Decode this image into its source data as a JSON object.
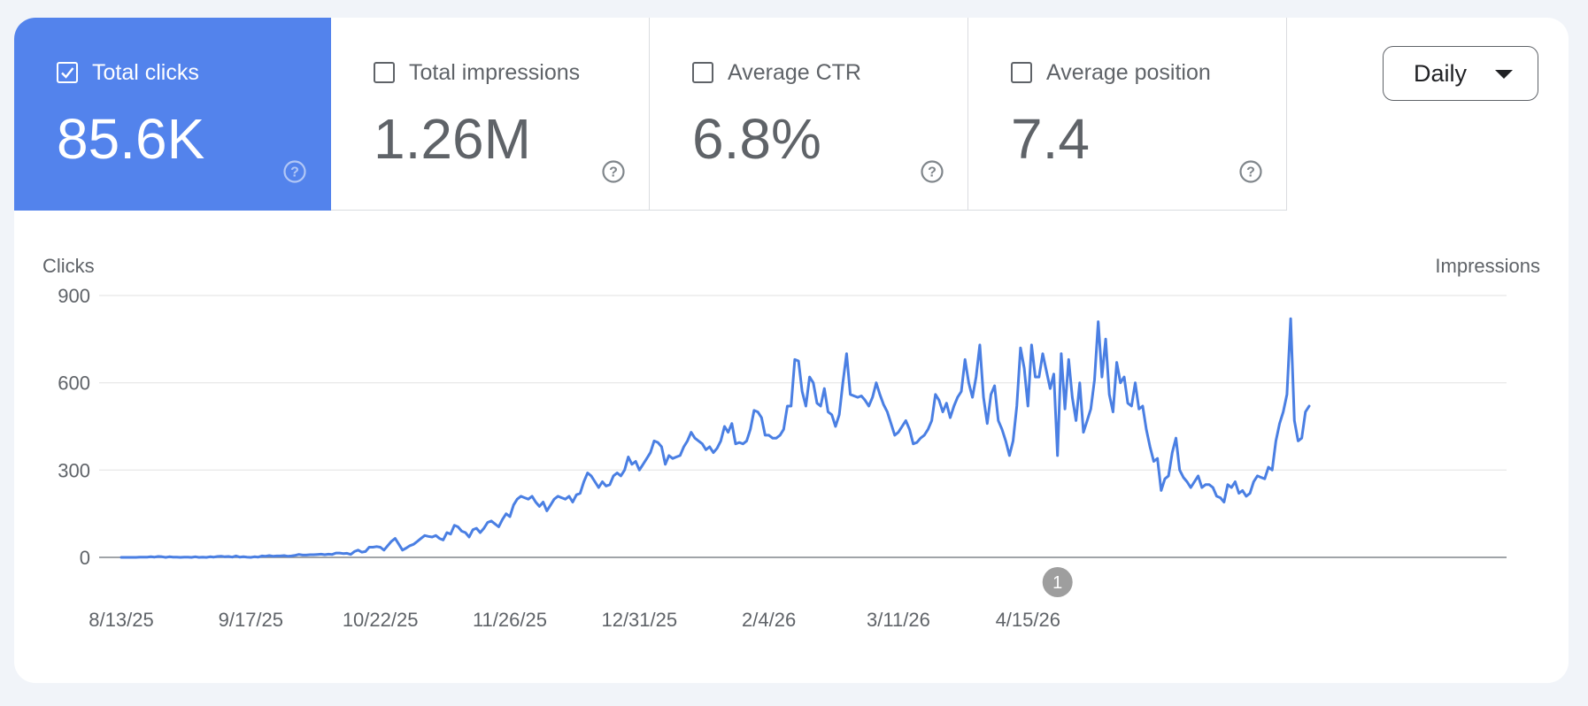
{
  "metrics": [
    {
      "label": "Total clicks",
      "value": "85.6K",
      "checked": true
    },
    {
      "label": "Total impressions",
      "value": "1.26M",
      "checked": false
    },
    {
      "label": "Average CTR",
      "value": "6.8%",
      "checked": false
    },
    {
      "label": "Average position",
      "value": "7.4",
      "checked": false
    }
  ],
  "dropdown": {
    "selected": "Daily"
  },
  "colors": {
    "accent": "#5383ec",
    "line": "#4a7fe3",
    "text": "#5f6368",
    "grid": "#e6e6e6"
  },
  "icons": {
    "help": "help-circle-icon",
    "check": "check-icon",
    "caret": "caret-down-icon"
  },
  "annotation": {
    "label": "1"
  },
  "chart_data": {
    "type": "line",
    "ylabel": "Clicks",
    "y2label": "Impressions",
    "ylim": [
      0,
      900
    ],
    "yticks": [
      0,
      300,
      600,
      900
    ],
    "xtick_labels": [
      "8/13/25",
      "9/17/25",
      "10/22/25",
      "11/26/25",
      "12/31/25",
      "2/4/26",
      "3/11/26",
      "4/15/26"
    ],
    "annotation": {
      "label": "1",
      "x_index": 253
    },
    "series": [
      {
        "values": [
          0,
          0,
          0,
          0,
          0,
          1,
          1,
          1,
          2,
          1,
          3,
          2,
          0,
          2,
          1,
          1,
          0,
          1,
          1,
          0,
          2,
          0,
          1,
          0,
          2,
          1,
          3,
          4,
          2,
          3,
          1,
          5,
          1,
          2,
          1,
          0,
          2,
          1,
          5,
          4,
          6,
          4,
          5,
          5,
          6,
          4,
          5,
          7,
          10,
          8,
          8,
          9,
          9,
          10,
          11,
          9,
          11,
          10,
          15,
          15,
          13,
          14,
          10,
          20,
          25,
          18,
          20,
          35,
          35,
          37,
          35,
          25,
          40,
          55,
          65,
          45,
          25,
          32,
          40,
          45,
          55,
          65,
          75,
          72,
          70,
          75,
          65,
          60,
          85,
          80,
          110,
          105,
          90,
          85,
          70,
          95,
          100,
          85,
          100,
          120,
          125,
          115,
          105,
          130,
          150,
          140,
          180,
          200,
          210,
          205,
          200,
          210,
          190,
          175,
          190,
          160,
          180,
          200,
          210,
          205,
          200,
          210,
          190,
          215,
          220,
          260,
          290,
          280,
          260,
          240,
          260,
          245,
          250,
          280,
          290,
          280,
          300,
          345,
          320,
          330,
          300,
          320,
          340,
          360,
          400,
          395,
          380,
          320,
          350,
          340,
          345,
          350,
          380,
          400,
          430,
          410,
          400,
          390,
          370,
          380,
          360,
          375,
          400,
          450,
          430,
          460,
          390,
          395,
          390,
          400,
          440,
          505,
          500,
          480,
          420,
          420,
          410,
          410,
          420,
          440,
          520,
          520,
          680,
          675,
          570,
          520,
          620,
          600,
          530,
          520,
          580,
          500,
          490,
          450,
          490,
          600,
          700,
          560,
          555,
          550,
          555,
          540,
          520,
          550,
          600,
          560,
          525,
          500,
          460,
          420,
          430,
          450,
          470,
          440,
          390,
          395,
          410,
          420,
          440,
          470,
          560,
          540,
          500,
          530,
          480,
          520,
          550,
          570,
          680,
          600,
          550,
          620,
          730,
          550,
          460,
          560,
          590,
          470,
          440,
          400,
          350,
          400,
          520,
          720,
          650,
          520,
          730,
          620,
          620,
          700,
          640,
          580,
          630,
          350,
          700,
          510,
          680,
          550,
          470,
          600,
          430,
          470,
          510,
          610,
          810,
          620,
          750,
          560,
          500,
          670,
          600,
          620,
          530,
          520,
          600,
          510,
          520,
          440,
          380,
          330,
          340,
          230,
          270,
          280,
          360,
          410,
          300,
          275,
          260,
          240,
          260,
          280,
          240,
          250,
          250,
          240,
          210,
          205,
          190,
          250,
          240,
          260,
          220,
          230,
          210,
          220,
          260,
          280,
          275,
          270,
          310,
          300,
          400,
          460,
          500,
          560,
          820,
          470,
          400,
          410,
          500,
          520
        ]
      }
    ]
  }
}
